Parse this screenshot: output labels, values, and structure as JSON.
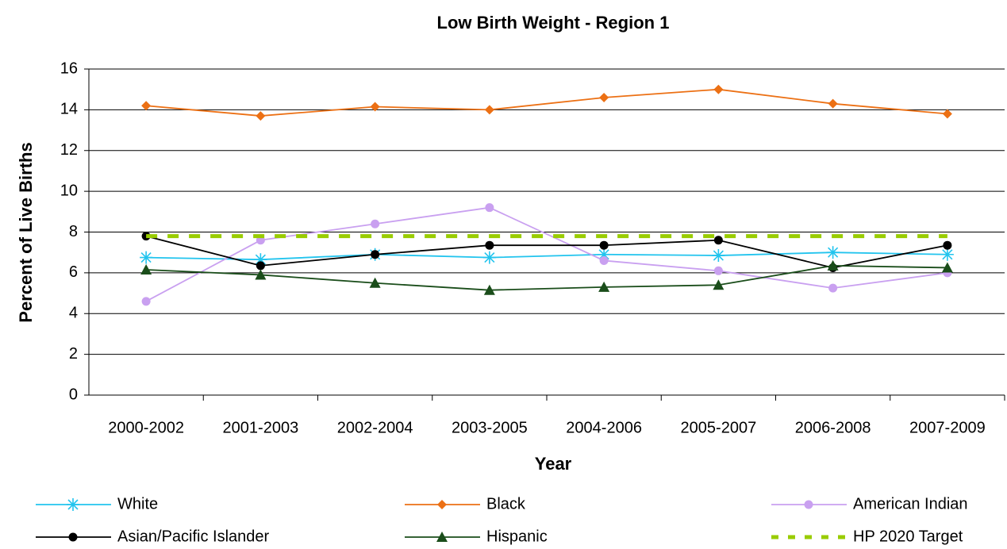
{
  "chart_data": {
    "type": "line",
    "title": "Low Birth Weight - Region 1",
    "x_label": "Year",
    "y_label": "Percent of Live Births",
    "categories": [
      "2000-2002",
      "2001-2003",
      "2002-2004",
      "2003-2005",
      "2004-2006",
      "2005-2007",
      "2006-2008",
      "2007-2009"
    ],
    "ylim": [
      0,
      16
    ],
    "yticks": [
      0,
      2,
      4,
      6,
      8,
      10,
      12,
      14,
      16
    ],
    "grid": true,
    "series": [
      {
        "name": "White",
        "color": "#22c4ee",
        "marker": "star",
        "values": [
          6.75,
          6.65,
          6.9,
          6.75,
          6.9,
          6.85,
          7.0,
          6.9
        ]
      },
      {
        "name": "Black",
        "color": "#ec7014",
        "marker": "diamond",
        "values": [
          14.2,
          13.7,
          14.15,
          14.0,
          14.6,
          15.0,
          14.3,
          13.8
        ]
      },
      {
        "name": "American Indian",
        "color": "#c9a0f0",
        "marker": "circle",
        "values": [
          4.6,
          7.6,
          8.4,
          9.2,
          6.6,
          6.1,
          5.25,
          6.0
        ]
      },
      {
        "name": "Asian/Pacific Islander",
        "color": "#000000",
        "marker": "circle",
        "values": [
          7.8,
          6.35,
          6.9,
          7.35,
          7.35,
          7.6,
          6.25,
          7.35
        ]
      },
      {
        "name": "Hispanic",
        "color": "#1a4d1a",
        "marker": "triangle",
        "values": [
          6.15,
          5.9,
          5.5,
          5.15,
          5.3,
          5.4,
          6.35,
          6.25
        ]
      },
      {
        "name": "HP 2020 Target",
        "color": "#99cc00",
        "marker": "none",
        "dashed": true,
        "values": [
          7.8,
          7.8,
          7.8,
          7.8,
          7.8,
          7.8,
          7.8,
          7.8
        ]
      }
    ]
  }
}
